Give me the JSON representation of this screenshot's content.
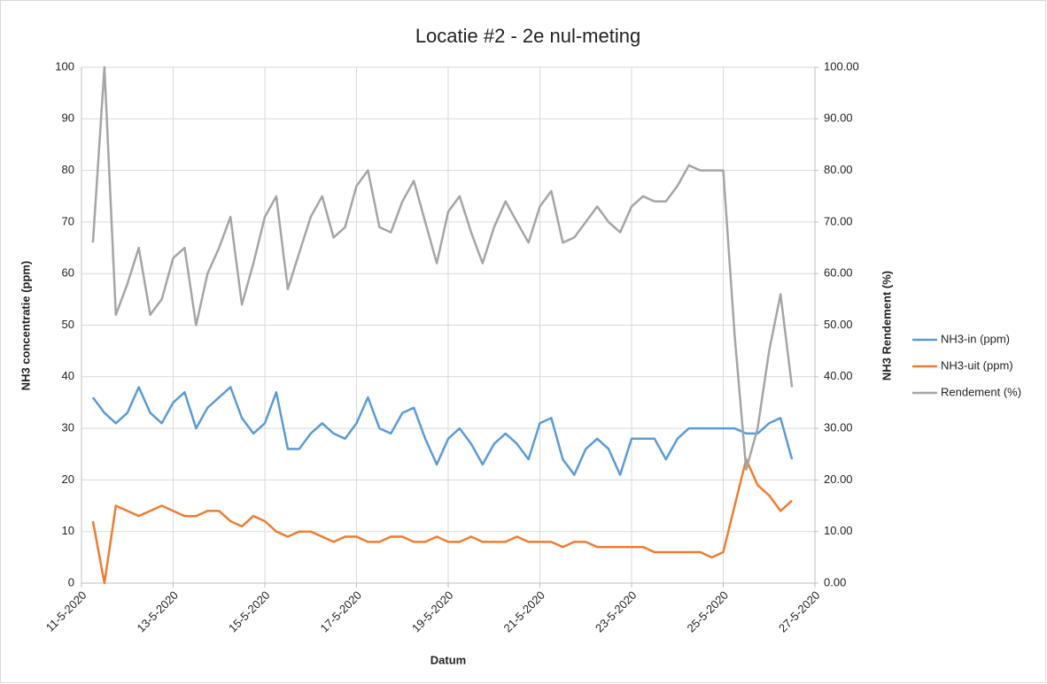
{
  "chart_data": {
    "type": "line",
    "title": "Locatie #2 - 2e nul-meting",
    "xlabel": "Datum",
    "ylabel": "NH3 concentratie (ppm)",
    "y2label": "NH3 Rendement (%)",
    "x": [
      "2020-05-11T06:00",
      "2020-05-11T12:00",
      "2020-05-11T18:00",
      "2020-05-12T00:00",
      "2020-05-12T06:00",
      "2020-05-12T12:00",
      "2020-05-12T18:00",
      "2020-05-13T00:00",
      "2020-05-13T06:00",
      "2020-05-13T12:00",
      "2020-05-13T18:00",
      "2020-05-14T00:00",
      "2020-05-14T06:00",
      "2020-05-14T12:00",
      "2020-05-14T18:00",
      "2020-05-15T00:00",
      "2020-05-15T06:00",
      "2020-05-15T12:00",
      "2020-05-15T18:00",
      "2020-05-16T00:00",
      "2020-05-16T06:00",
      "2020-05-16T12:00",
      "2020-05-16T18:00",
      "2020-05-17T00:00",
      "2020-05-17T06:00",
      "2020-05-17T12:00",
      "2020-05-17T18:00",
      "2020-05-18T00:00",
      "2020-05-18T06:00",
      "2020-05-18T12:00",
      "2020-05-18T18:00",
      "2020-05-19T00:00",
      "2020-05-19T06:00",
      "2020-05-19T12:00",
      "2020-05-19T18:00",
      "2020-05-20T00:00",
      "2020-05-20T06:00",
      "2020-05-20T12:00",
      "2020-05-20T18:00",
      "2020-05-21T00:00",
      "2020-05-21T06:00",
      "2020-05-21T12:00",
      "2020-05-21T18:00",
      "2020-05-22T00:00",
      "2020-05-22T06:00",
      "2020-05-22T12:00",
      "2020-05-22T18:00",
      "2020-05-23T00:00",
      "2020-05-23T06:00",
      "2020-05-23T12:00",
      "2020-05-23T18:00",
      "2020-05-24T00:00",
      "2020-05-24T06:00",
      "2020-05-24T12:00",
      "2020-05-24T18:00",
      "2020-05-25T00:00",
      "2020-05-25T06:00",
      "2020-05-25T12:00",
      "2020-05-25T18:00",
      "2020-05-26T00:00",
      "2020-05-26T06:00",
      "2020-05-26T12:00"
    ],
    "series": [
      {
        "name": "NH3-in (ppm)",
        "color": "#5b9bd5",
        "values": [
          36,
          33,
          31,
          33,
          38,
          33,
          31,
          35,
          37,
          30,
          34,
          36,
          38,
          32,
          29,
          31,
          37,
          26,
          26,
          29,
          31,
          29,
          28,
          31,
          36,
          30,
          29,
          33,
          34,
          28,
          23,
          28,
          30,
          27,
          23,
          27,
          29,
          27,
          24,
          31,
          32,
          24,
          21,
          26,
          28,
          26,
          21,
          28,
          28,
          28,
          24,
          28,
          30,
          30,
          30,
          30,
          30,
          29,
          29,
          31,
          32,
          24
        ]
      },
      {
        "name": "NH3-uit (ppm)",
        "color": "#ed7d31",
        "values": [
          12,
          0,
          15,
          14,
          13,
          14,
          15,
          14,
          13,
          13,
          14,
          14,
          12,
          11,
          13,
          12,
          10,
          9,
          10,
          10,
          9,
          8,
          9,
          9,
          8,
          8,
          9,
          9,
          8,
          8,
          9,
          8,
          8,
          9,
          8,
          8,
          8,
          9,
          8,
          8,
          8,
          7,
          8,
          8,
          7,
          7,
          7,
          7,
          7,
          6,
          6,
          6,
          6,
          6,
          5,
          6,
          15,
          24,
          19,
          17,
          14,
          16
        ]
      },
      {
        "name": "Rendement (%)",
        "color": "#a5a5a5",
        "axis": "y2",
        "values": [
          66,
          100,
          52,
          58,
          65,
          52,
          55,
          63,
          65,
          50,
          60,
          65,
          71,
          54,
          62,
          71,
          75,
          57,
          64,
          71,
          75,
          67,
          69,
          77,
          80,
          69,
          68,
          74,
          78,
          70,
          62,
          72,
          75,
          68,
          62,
          69,
          74,
          70,
          66,
          73,
          76,
          66,
          67,
          70,
          73,
          70,
          68,
          73,
          75,
          74,
          74,
          77,
          81,
          80,
          80,
          80,
          48,
          22,
          30,
          45,
          56,
          38
        ]
      }
    ],
    "xlim": [
      "2020-05-11",
      "2020-05-27"
    ],
    "xticks": [
      {
        "value": "2020-05-11",
        "label": "11-5-2020"
      },
      {
        "value": "2020-05-13",
        "label": "13-5-2020"
      },
      {
        "value": "2020-05-15",
        "label": "15-5-2020"
      },
      {
        "value": "2020-05-17",
        "label": "17-5-2020"
      },
      {
        "value": "2020-05-19",
        "label": "19-5-2020"
      },
      {
        "value": "2020-05-21",
        "label": "21-5-2020"
      },
      {
        "value": "2020-05-23",
        "label": "23-5-2020"
      },
      {
        "value": "2020-05-25",
        "label": "25-5-2020"
      },
      {
        "value": "2020-05-27",
        "label": "27-5-2020"
      }
    ],
    "ylim": [
      0,
      100
    ],
    "yticks": [
      0,
      10,
      20,
      30,
      40,
      50,
      60,
      70,
      80,
      90,
      100
    ],
    "y2lim": [
      0,
      100
    ],
    "y2ticks": [
      {
        "value": 0,
        "label": "0.00"
      },
      {
        "value": 10,
        "label": "10.00"
      },
      {
        "value": 20,
        "label": "20.00"
      },
      {
        "value": 30,
        "label": "30.00"
      },
      {
        "value": 40,
        "label": "40.00"
      },
      {
        "value": 50,
        "label": "50.00"
      },
      {
        "value": 60,
        "label": "60.00"
      },
      {
        "value": 70,
        "label": "70.00"
      },
      {
        "value": 80,
        "label": "80.00"
      },
      {
        "value": 90,
        "label": "90.00"
      },
      {
        "value": 100,
        "label": "100.00"
      }
    ],
    "grid": true,
    "legend": "right"
  }
}
